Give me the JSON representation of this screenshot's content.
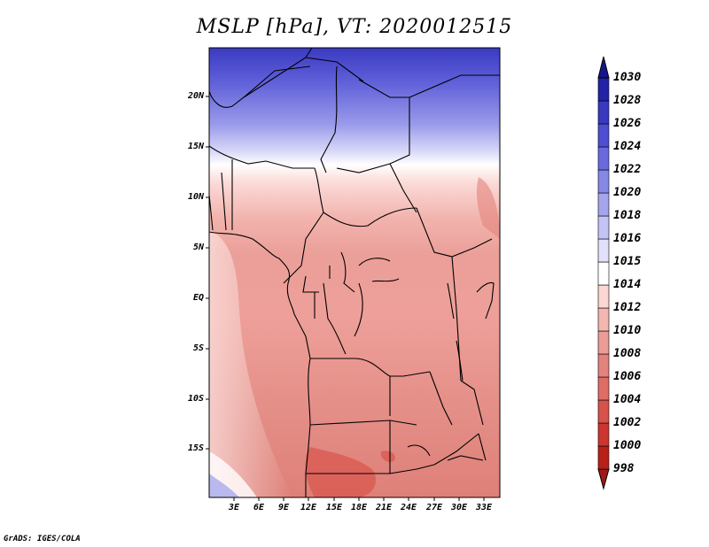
{
  "title": "MSLP [hPa], VT: 2020012515",
  "footer": "GrADS: IGES/COLA",
  "lat_labels": [
    "20N",
    "15N",
    "10N",
    "5N",
    "EQ",
    "5S",
    "10S",
    "15S"
  ],
  "lon_labels": [
    "3E",
    "6E",
    "9E",
    "12E",
    "15E",
    "18E",
    "21E",
    "24E",
    "27E",
    "30E",
    "33E"
  ],
  "colorbar": {
    "levels": [
      "998",
      "1000",
      "1002",
      "1004",
      "1006",
      "1008",
      "1010",
      "1012",
      "1014",
      "1015",
      "1016",
      "1018",
      "1020",
      "1022",
      "1024",
      "1026",
      "1028",
      "1030"
    ],
    "colors": [
      "#a01a14",
      "#b8201a",
      "#cc3530",
      "#d8524c",
      "#df6d66",
      "#e3837d",
      "#eb9c96",
      "#f3b6b1",
      "#fbd6d3",
      "#ffffff",
      "#e1e1fb",
      "#c3c3f5",
      "#a5a5ee",
      "#8787e6",
      "#6a6ade",
      "#4e4ed2",
      "#3838c0",
      "#2222a8",
      "#16168a"
    ]
  }
}
